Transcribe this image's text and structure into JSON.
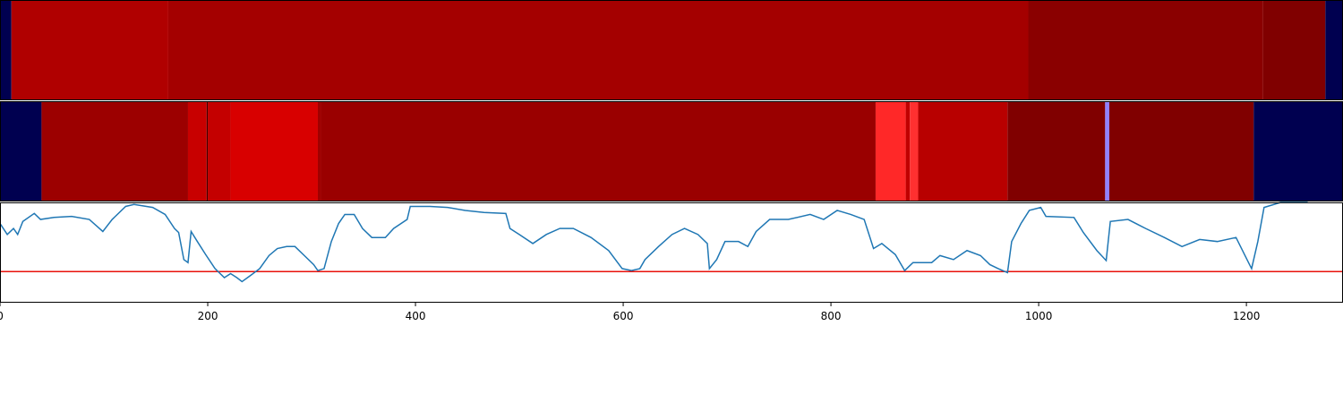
{
  "chart_data": [
    {
      "type": "heatmap",
      "xlim": [
        0,
        1293
      ],
      "starts": [
        0,
        11,
        162,
        990,
        1216,
        1276
      ],
      "ends": [
        11,
        162,
        990,
        1216,
        1276,
        1293
      ],
      "colors": [
        "#000050",
        "#b00000",
        "#a40000",
        "#8a0000",
        "#800000",
        "#000050"
      ]
    },
    {
      "type": "heatmap",
      "xlim": [
        0,
        1293
      ],
      "starts": [
        0,
        40,
        181,
        199,
        200,
        222,
        306,
        309,
        843,
        872,
        876,
        884,
        970,
        1064,
        1068,
        1207
      ],
      "ends": [
        40,
        181,
        199,
        200,
        222,
        306,
        309,
        843,
        872,
        876,
        884,
        970,
        1064,
        1068,
        1207,
        1293
      ],
      "colors": [
        "#000050",
        "#9c0000",
        "#c80000",
        "#400000",
        "#c40000",
        "#d80000",
        "#a00000",
        "#9a0000",
        "#ff2828",
        "#c00000",
        "#ff3030",
        "#b80000",
        "#800000",
        "#9080ff",
        "#800000",
        "#000050"
      ]
    },
    {
      "type": "line",
      "xlim": [
        0,
        1293
      ],
      "ylim": [
        0,
        1
      ],
      "xticks": [
        0,
        200,
        400,
        600,
        800,
        1000,
        1200
      ],
      "threshold": {
        "value": 0.31,
        "color": "#e8120c"
      },
      "x": [
        0,
        7,
        13,
        17,
        22,
        33,
        39,
        52,
        69,
        86,
        99,
        108,
        121,
        129,
        147,
        159,
        168,
        172,
        177,
        181,
        184,
        190,
        198,
        207,
        216,
        222,
        228,
        233,
        241,
        250,
        259,
        267,
        276,
        284,
        293,
        302,
        306,
        312,
        319,
        326,
        332,
        341,
        349,
        358,
        371,
        379,
        392,
        395,
        414,
        431,
        448,
        466,
        487,
        491,
        500,
        513,
        526,
        539,
        552,
        569,
        586,
        599,
        608,
        616,
        621,
        634,
        647,
        659,
        672,
        681,
        683,
        690,
        698,
        711,
        720,
        728,
        741,
        759,
        780,
        793,
        806,
        819,
        832,
        841,
        849,
        862,
        871,
        879,
        897,
        905,
        918,
        931,
        944,
        953,
        961,
        970,
        974,
        983,
        991,
        1002,
        1007,
        1034,
        1043,
        1056,
        1065,
        1069,
        1086,
        1103,
        1121,
        1138,
        1155,
        1172,
        1190,
        1203,
        1205,
        1211,
        1217,
        1233,
        1259
      ],
      "series": [
        {
          "color": "#1f77b4",
          "values": [
            0.79,
            0.68,
            0.74,
            0.68,
            0.81,
            0.89,
            0.83,
            0.85,
            0.86,
            0.83,
            0.71,
            0.83,
            0.96,
            0.98,
            0.95,
            0.88,
            0.74,
            0.7,
            0.43,
            0.4,
            0.71,
            0.61,
            0.48,
            0.34,
            0.25,
            0.29,
            0.25,
            0.21,
            0.27,
            0.34,
            0.47,
            0.54,
            0.56,
            0.56,
            0.47,
            0.38,
            0.32,
            0.34,
            0.61,
            0.79,
            0.88,
            0.88,
            0.74,
            0.65,
            0.65,
            0.74,
            0.83,
            0.96,
            0.96,
            0.95,
            0.92,
            0.9,
            0.89,
            0.74,
            0.68,
            0.59,
            0.68,
            0.74,
            0.74,
            0.65,
            0.52,
            0.34,
            0.32,
            0.34,
            0.43,
            0.56,
            0.68,
            0.74,
            0.68,
            0.59,
            0.34,
            0.43,
            0.61,
            0.61,
            0.56,
            0.71,
            0.83,
            0.83,
            0.88,
            0.83,
            0.92,
            0.88,
            0.83,
            0.54,
            0.59,
            0.48,
            0.32,
            0.4,
            0.4,
            0.47,
            0.43,
            0.52,
            0.47,
            0.38,
            0.34,
            0.3,
            0.61,
            0.79,
            0.92,
            0.95,
            0.86,
            0.85,
            0.7,
            0.52,
            0.42,
            0.81,
            0.83,
            0.74,
            0.65,
            0.56,
            0.63,
            0.61,
            0.65,
            0.38,
            0.34,
            0.61,
            0.95,
            1.0,
            1.0
          ]
        }
      ]
    }
  ]
}
